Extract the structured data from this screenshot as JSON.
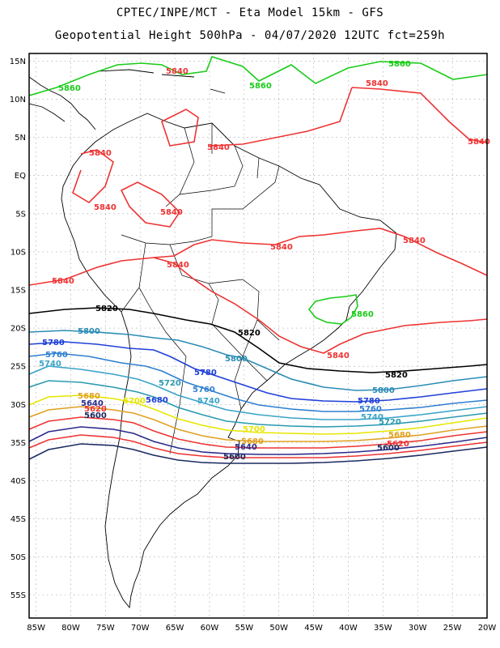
{
  "header": {
    "line1": "CPTEC/INPE/MCT -  Eta Model 15km - GFS",
    "line2": "Geopotential Height 500hPa - 04/07/2020 12UTC fct=259h"
  },
  "map": {
    "lat_labels": [
      "15N",
      "10N",
      "5N",
      "EQ",
      "5S",
      "10S",
      "15S",
      "20S",
      "25S",
      "30S",
      "35S",
      "40S",
      "45S",
      "50S",
      "55S"
    ],
    "lon_labels": [
      "85W",
      "80W",
      "75W",
      "70W",
      "65W",
      "60W",
      "55W",
      "50W",
      "45W",
      "40W",
      "35W",
      "30W",
      "25W",
      "20W"
    ],
    "extent": {
      "lon_min": -86,
      "lon_max": -20,
      "lat_min": -58,
      "lat_max": 16
    }
  },
  "contours": [
    {
      "value": "5860",
      "color": "#19cc19"
    },
    {
      "value": "5840",
      "color": "#ee3333"
    },
    {
      "value": "5820",
      "color": "#000000"
    },
    {
      "value": "5800",
      "color": "#2a8cb4"
    },
    {
      "value": "5780",
      "color": "#1f3fd8"
    },
    {
      "value": "5760",
      "color": "#2f7fd0"
    },
    {
      "value": "5740",
      "color": "#3aa3c8"
    },
    {
      "value": "5720",
      "color": "#2a9ab0"
    },
    {
      "value": "5700",
      "color": "#e6e600"
    },
    {
      "value": "5680",
      "color": "#e0a020"
    },
    {
      "value": "5660",
      "color": "#ee3333"
    },
    {
      "value": "5640",
      "color": "#2a2a8a"
    },
    {
      "value": "5620",
      "color": "#ee3333"
    },
    {
      "value": "5600",
      "color": "#1a2a60"
    }
  ]
}
